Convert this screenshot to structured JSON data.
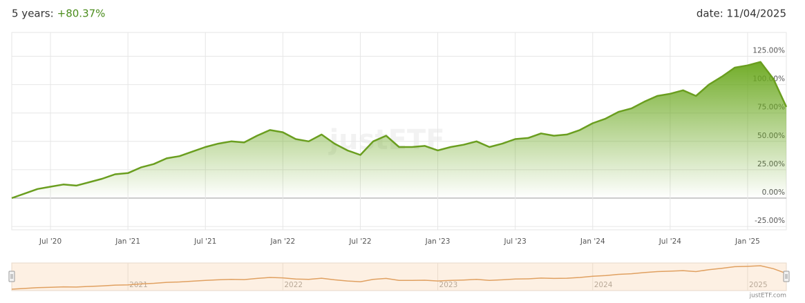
{
  "header": {
    "period_label": "5 years:",
    "performance": "+80.37%",
    "date": "date: 11/04/2025"
  },
  "chart_data": {
    "type": "area",
    "watermark": "justETF",
    "x": [
      "2020-04",
      "2020-05",
      "2020-06",
      "2020-07",
      "2020-08",
      "2020-09",
      "2020-10",
      "2020-11",
      "2020-12",
      "2021-01",
      "2021-02",
      "2021-03",
      "2021-04",
      "2021-05",
      "2021-06",
      "2021-07",
      "2021-08",
      "2021-09",
      "2021-10",
      "2021-11",
      "2021-12",
      "2022-01",
      "2022-02",
      "2022-03",
      "2022-04",
      "2022-05",
      "2022-06",
      "2022-07",
      "2022-08",
      "2022-09",
      "2022-10",
      "2022-11",
      "2022-12",
      "2023-01",
      "2023-02",
      "2023-03",
      "2023-04",
      "2023-05",
      "2023-06",
      "2023-07",
      "2023-08",
      "2023-09",
      "2023-10",
      "2023-11",
      "2023-12",
      "2024-01",
      "2024-02",
      "2024-03",
      "2024-04",
      "2024-05",
      "2024-06",
      "2024-07",
      "2024-08",
      "2024-09",
      "2024-10",
      "2024-11",
      "2024-12",
      "2025-01",
      "2025-02",
      "2025-03",
      "2025-04"
    ],
    "series": [
      {
        "color": "#6a9e1f",
        "values": [
          0,
          4,
          8,
          10,
          12,
          11,
          14,
          17,
          21,
          22,
          27,
          30,
          35,
          37,
          41,
          45,
          48,
          50,
          49,
          55,
          60,
          58,
          52,
          50,
          56,
          48,
          42,
          38,
          50,
          55,
          45,
          45,
          46,
          42,
          45,
          47,
          50,
          45,
          48,
          52,
          53,
          57,
          55,
          56,
          60,
          66,
          70,
          76,
          79,
          85,
          90,
          92,
          95,
          90,
          100,
          107,
          115,
          117,
          120,
          105,
          80.37
        ]
      }
    ],
    "xlim": [
      "2020-04",
      "2025-04"
    ],
    "xticks": [
      {
        "value": "2020-07",
        "label": "Jul '20"
      },
      {
        "value": "2021-01",
        "label": "Jan '21"
      },
      {
        "value": "2021-07",
        "label": "Jul '21"
      },
      {
        "value": "2022-01",
        "label": "Jan '22"
      },
      {
        "value": "2022-07",
        "label": "Jul '22"
      },
      {
        "value": "2023-01",
        "label": "Jan '23"
      },
      {
        "value": "2023-07",
        "label": "Jul '23"
      },
      {
        "value": "2024-01",
        "label": "Jan '24"
      },
      {
        "value": "2024-07",
        "label": "Jul '24"
      },
      {
        "value": "2025-01",
        "label": "Jan '25"
      }
    ],
    "ylim": [
      -28,
      146
    ],
    "yticks": [
      {
        "value": -25,
        "label": "-25.00%"
      },
      {
        "value": 0,
        "label": "0.00%"
      },
      {
        "value": 25,
        "label": "25.00%"
      },
      {
        "value": 50,
        "label": "50.00%"
      },
      {
        "value": 75,
        "label": "75.00%"
      },
      {
        "value": 100,
        "label": "100.00%"
      },
      {
        "value": 125,
        "label": "125.00%"
      }
    ],
    "grid": true,
    "navigator": {
      "color": "#e0a060",
      "xticks": [
        {
          "value": "2021-01",
          "label": "2021"
        },
        {
          "value": "2022-01",
          "label": "2022"
        },
        {
          "value": "2023-01",
          "label": "2023"
        },
        {
          "value": "2024-01",
          "label": "2024"
        },
        {
          "value": "2025-01",
          "label": "2025"
        }
      ]
    }
  },
  "credit": "justETF.com"
}
